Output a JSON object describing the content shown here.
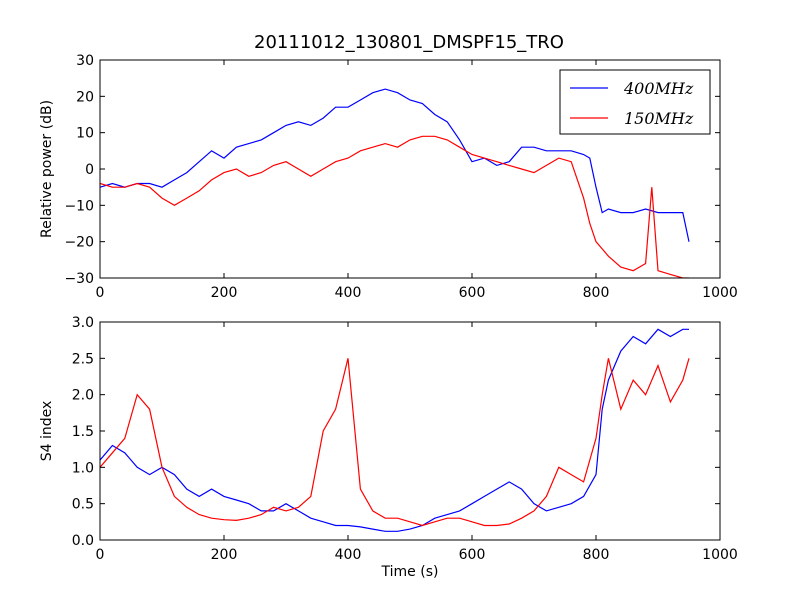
{
  "figure": {
    "title": "20111012_130801_DMSPF15_TRO"
  },
  "chart_data": [
    {
      "type": "line",
      "title": "20111012_130801_DMSPF15_TRO",
      "xlabel": "",
      "ylabel": "Relative power (dB)",
      "xlim": [
        0,
        1000
      ],
      "ylim": [
        -30,
        30
      ],
      "xticks": [
        "0",
        "200",
        "400",
        "600",
        "800",
        "1000"
      ],
      "yticks": [
        "−30",
        "−20",
        "−10",
        "0",
        "10",
        "20",
        "30"
      ],
      "grid": false,
      "legend": "top-right",
      "series": [
        {
          "name": "400MHz",
          "color": "#0000ff",
          "x": [
            0,
            20,
            40,
            60,
            80,
            100,
            120,
            140,
            160,
            180,
            200,
            220,
            240,
            260,
            280,
            300,
            320,
            340,
            360,
            380,
            400,
            420,
            440,
            460,
            480,
            500,
            520,
            540,
            560,
            580,
            600,
            620,
            640,
            660,
            680,
            700,
            720,
            740,
            760,
            780,
            790,
            800,
            810,
            820,
            840,
            860,
            880,
            900,
            920,
            940,
            950
          ],
          "y": [
            -5,
            -4,
            -5,
            -4,
            -4,
            -5,
            -3,
            -1,
            2,
            5,
            3,
            6,
            7,
            8,
            10,
            12,
            13,
            12,
            14,
            17,
            17,
            19,
            21,
            22,
            21,
            19,
            18,
            15,
            13,
            8,
            2,
            3,
            1,
            2,
            6,
            6,
            5,
            5,
            5,
            4,
            3,
            -5,
            -12,
            -11,
            -12,
            -12,
            -11,
            -12,
            -12,
            -12,
            -20
          ]
        },
        {
          "name": "150MHz",
          "color": "#ff0000",
          "x": [
            0,
            20,
            40,
            60,
            80,
            100,
            120,
            140,
            160,
            180,
            200,
            220,
            240,
            260,
            280,
            300,
            320,
            340,
            360,
            380,
            400,
            420,
            440,
            460,
            480,
            500,
            520,
            540,
            560,
            580,
            600,
            620,
            640,
            660,
            680,
            700,
            720,
            740,
            760,
            780,
            790,
            800,
            810,
            820,
            840,
            860,
            880,
            890,
            900,
            920,
            940,
            950
          ],
          "y": [
            -4,
            -5,
            -5,
            -4,
            -5,
            -8,
            -10,
            -8,
            -6,
            -3,
            -1,
            0,
            -2,
            -1,
            1,
            2,
            0,
            -2,
            0,
            2,
            3,
            5,
            6,
            7,
            6,
            8,
            9,
            9,
            8,
            6,
            4,
            3,
            2,
            1,
            0,
            -1,
            1,
            3,
            2,
            -8,
            -15,
            -20,
            -22,
            -24,
            -27,
            -28,
            -26,
            -5,
            -28,
            -29,
            -30,
            -30
          ]
        }
      ]
    },
    {
      "type": "line",
      "title": "",
      "xlabel": "Time (s)",
      "ylabel": "S4 index",
      "xlim": [
        0,
        1000
      ],
      "ylim": [
        0,
        3
      ],
      "xticks": [
        "0",
        "200",
        "400",
        "600",
        "800",
        "1000"
      ],
      "yticks": [
        "0.0",
        "0.5",
        "1.0",
        "1.5",
        "2.0",
        "2.5",
        "3.0"
      ],
      "grid": false,
      "legend": "none",
      "series": [
        {
          "name": "",
          "color": "#0000ff",
          "x": [
            0,
            20,
            40,
            60,
            80,
            100,
            120,
            140,
            160,
            180,
            200,
            220,
            240,
            260,
            280,
            300,
            320,
            340,
            360,
            380,
            400,
            420,
            440,
            460,
            480,
            500,
            520,
            540,
            560,
            580,
            600,
            620,
            640,
            660,
            680,
            700,
            720,
            740,
            760,
            780,
            800,
            810,
            820,
            840,
            860,
            880,
            900,
            920,
            940,
            950
          ],
          "y": [
            1.1,
            1.3,
            1.2,
            1.0,
            0.9,
            1.0,
            0.9,
            0.7,
            0.6,
            0.7,
            0.6,
            0.55,
            0.5,
            0.4,
            0.4,
            0.5,
            0.4,
            0.3,
            0.25,
            0.2,
            0.2,
            0.18,
            0.15,
            0.12,
            0.12,
            0.15,
            0.2,
            0.3,
            0.35,
            0.4,
            0.5,
            0.6,
            0.7,
            0.8,
            0.7,
            0.5,
            0.4,
            0.45,
            0.5,
            0.6,
            0.9,
            1.8,
            2.2,
            2.6,
            2.8,
            2.7,
            2.9,
            2.8,
            2.9,
            2.9
          ]
        },
        {
          "name": "",
          "color": "#ff0000",
          "x": [
            0,
            20,
            40,
            60,
            80,
            100,
            120,
            140,
            160,
            180,
            200,
            220,
            240,
            260,
            280,
            300,
            320,
            340,
            360,
            380,
            400,
            420,
            440,
            460,
            480,
            500,
            520,
            540,
            560,
            580,
            600,
            620,
            640,
            660,
            680,
            700,
            720,
            740,
            760,
            780,
            800,
            810,
            820,
            840,
            860,
            880,
            900,
            920,
            940,
            950
          ],
          "y": [
            1.0,
            1.2,
            1.4,
            2.0,
            1.8,
            1.0,
            0.6,
            0.45,
            0.35,
            0.3,
            0.28,
            0.27,
            0.3,
            0.35,
            0.45,
            0.4,
            0.45,
            0.6,
            1.5,
            1.8,
            2.5,
            0.7,
            0.4,
            0.3,
            0.3,
            0.25,
            0.2,
            0.25,
            0.3,
            0.3,
            0.25,
            0.2,
            0.2,
            0.22,
            0.3,
            0.4,
            0.6,
            1.0,
            0.9,
            0.8,
            1.4,
            2.0,
            2.5,
            1.8,
            2.2,
            2.0,
            2.4,
            1.9,
            2.2,
            2.5
          ]
        }
      ]
    }
  ]
}
